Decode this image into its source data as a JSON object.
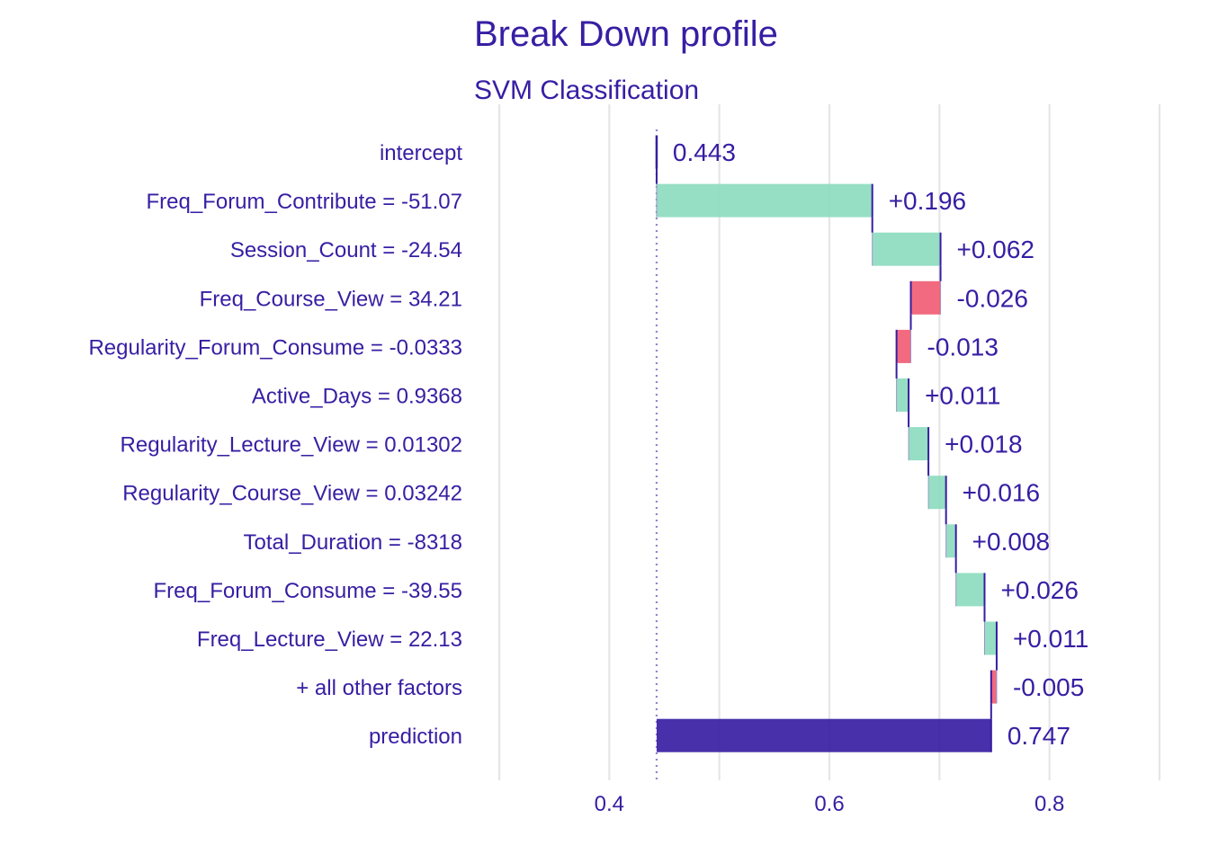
{
  "chart_data": {
    "type": "bar",
    "subtype": "waterfall",
    "title": "Break Down profile",
    "subtitle": "SVM Classification",
    "xlim": [
      0.3,
      0.9
    ],
    "x_ticks": [
      0.4,
      0.6,
      0.8
    ],
    "x_tick_labels": [
      "0.4",
      "0.6",
      "0.8"
    ],
    "grid": true,
    "baseline": 0.443,
    "colors": {
      "positive": "#8bdcbe",
      "negative": "#f05a71",
      "prediction": "#371ea3",
      "text": "#371ea3",
      "grid": "#e6e6e6",
      "connector": "#371ea3"
    },
    "rows": [
      {
        "label": "intercept",
        "start": 0.443,
        "end": 0.443,
        "value_label": "0.443",
        "kind": "intercept"
      },
      {
        "label": "Freq_Forum_Contribute = -51.07",
        "start": 0.443,
        "end": 0.639,
        "value_label": "+0.196",
        "kind": "positive"
      },
      {
        "label": "Session_Count = -24.54",
        "start": 0.639,
        "end": 0.701,
        "value_label": "+0.062",
        "kind": "positive"
      },
      {
        "label": "Freq_Course_View = 34.21",
        "start": 0.701,
        "end": 0.674,
        "value_label": "-0.026",
        "kind": "negative"
      },
      {
        "label": "Regularity_Forum_Consume = -0.0333",
        "start": 0.674,
        "end": 0.661,
        "value_label": "-0.013",
        "kind": "negative"
      },
      {
        "label": "Active_Days = 0.9368",
        "start": 0.661,
        "end": 0.672,
        "value_label": "+0.011",
        "kind": "positive"
      },
      {
        "label": "Regularity_Lecture_View = 0.01302",
        "start": 0.672,
        "end": 0.69,
        "value_label": "+0.018",
        "kind": "positive"
      },
      {
        "label": "Regularity_Course_View = 0.03242",
        "start": 0.69,
        "end": 0.706,
        "value_label": "+0.016",
        "kind": "positive"
      },
      {
        "label": "Total_Duration = -8318",
        "start": 0.706,
        "end": 0.715,
        "value_label": "+0.008",
        "kind": "positive"
      },
      {
        "label": "Freq_Forum_Consume = -39.55",
        "start": 0.715,
        "end": 0.741,
        "value_label": "+0.026",
        "kind": "positive"
      },
      {
        "label": "Freq_Lecture_View = 22.13",
        "start": 0.741,
        "end": 0.752,
        "value_label": "+0.011",
        "kind": "positive"
      },
      {
        "label": "+ all other factors",
        "start": 0.752,
        "end": 0.747,
        "value_label": "-0.005",
        "kind": "negative"
      },
      {
        "label": "prediction",
        "start": 0.443,
        "end": 0.747,
        "value_label": "0.747",
        "kind": "prediction"
      }
    ]
  }
}
